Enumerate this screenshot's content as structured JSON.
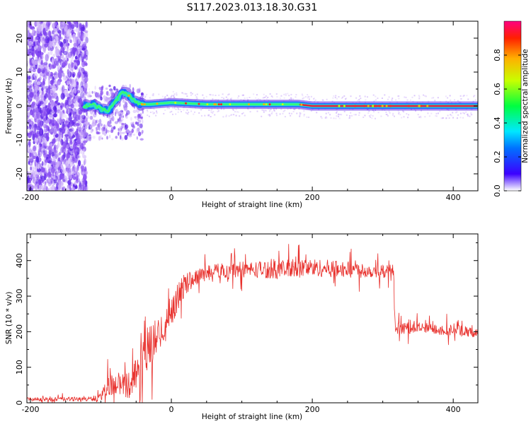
{
  "title": "S117.2023.013.18.30.G31",
  "colors": {
    "snr_line": "#e8302c",
    "ridge": "#2ad7d0",
    "ridge_core": "#e81e3a",
    "noise": "#7a3cf0"
  },
  "chart_data": [
    {
      "type": "heatmap",
      "title": "S117.2023.013.18.30.G31",
      "xlabel": "Height of straight line (km)",
      "ylabel": "Frequency (Hz)",
      "xlim": [
        -205,
        435
      ],
      "ylim": [
        -25,
        25
      ],
      "xticks": [
        "-200",
        "0",
        "200",
        "400"
      ],
      "yticks": [
        "20",
        "10",
        "0",
        "-10",
        "-20"
      ],
      "colorbar": {
        "label": "Normalized spectral amplitude",
        "range": [
          0.0,
          1.0
        ],
        "ticks": [
          "0.0",
          "0.2",
          "0.4",
          "0.6",
          "0.8"
        ],
        "colormap": "rainbow"
      },
      "ridge": {
        "x": [
          -125,
          -110,
          -100,
          -90,
          -80,
          -70,
          -65,
          -55,
          -45,
          -30,
          0,
          50,
          100,
          150,
          180,
          200,
          300,
          400,
          435
        ],
        "y": [
          0,
          0.5,
          -1,
          -1.5,
          1,
          4,
          4,
          2,
          0.5,
          0.5,
          1,
          0.5,
          0.5,
          0.5,
          0.5,
          0,
          0,
          0,
          0
        ]
      }
    },
    {
      "type": "line",
      "xlabel": "Height of straight line (km)",
      "ylabel": "SNR (10 * v/v)",
      "xlim": [
        -205,
        435
      ],
      "ylim": [
        0,
        475
      ],
      "xticks": [
        "-200",
        "0",
        "200",
        "400"
      ],
      "yticks": [
        "0",
        "100",
        "200",
        "300",
        "400"
      ],
      "envelope": {
        "x": [
          -205,
          -120,
          -100,
          -90,
          -75,
          -60,
          -40,
          -30,
          -15,
          0,
          15,
          30,
          50,
          100,
          150,
          200,
          250,
          300,
          315,
          318,
          350,
          400,
          435
        ],
        "y": [
          10,
          10,
          15,
          50,
          50,
          50,
          120,
          160,
          200,
          260,
          320,
          350,
          370,
          375,
          375,
          380,
          375,
          370,
          370,
          210,
          210,
          205,
          195
        ]
      },
      "noise": [
        8,
        10,
        15,
        45,
        40,
        60,
        80,
        90,
        80,
        70,
        50,
        40,
        30,
        35,
        40,
        40,
        35,
        30,
        30,
        25,
        25,
        25,
        20
      ]
    }
  ]
}
